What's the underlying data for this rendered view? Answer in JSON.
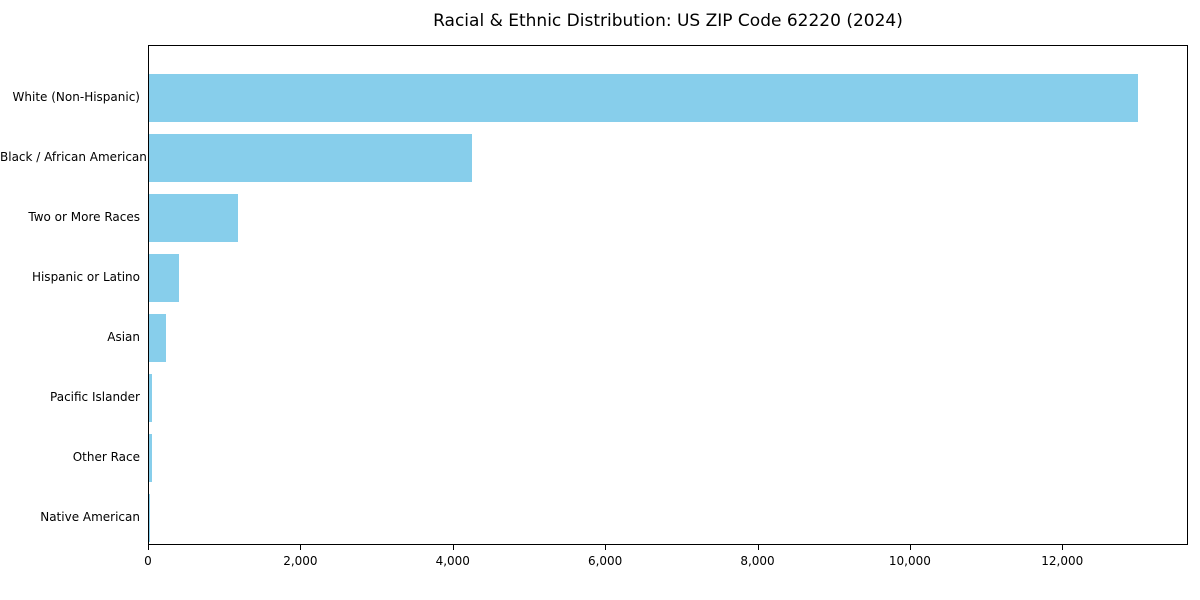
{
  "chart_data": {
    "type": "bar",
    "orientation": "horizontal",
    "title": "Racial & Ethnic Distribution: US ZIP Code 62220 (2024)",
    "categories": [
      "White (Non-Hispanic)",
      "Black / African American",
      "Two or More Races",
      "Hispanic or Latino",
      "Asian",
      "Pacific Islander",
      "Other Race",
      "Native American"
    ],
    "values": [
      13000,
      4250,
      1170,
      400,
      225,
      40,
      35,
      5
    ],
    "bar_color": "#87CEEB",
    "background_color": "#ffffff",
    "axis_color": "#000000",
    "xlim": [
      0,
      13650
    ],
    "x_ticks": [
      0,
      2000,
      4000,
      6000,
      8000,
      10000,
      12000
    ],
    "x_tick_labels": [
      "0",
      "2,000",
      "4,000",
      "6,000",
      "8,000",
      "10,000",
      "12,000"
    ],
    "xlabel": "",
    "ylabel": "",
    "grid": false,
    "legend": null
  }
}
